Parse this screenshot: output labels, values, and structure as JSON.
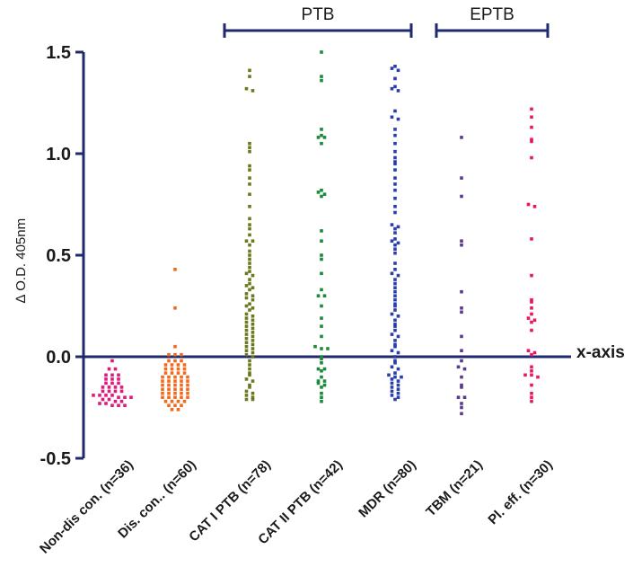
{
  "chart_data": {
    "type": "scatter",
    "title": "",
    "xlabel": "",
    "ylabel": "∆ O.D. 405nm",
    "ylim": [
      -0.5,
      1.5
    ],
    "yticks": [
      "1.5",
      "1.0",
      "0.5",
      "0.0",
      "-0.5"
    ],
    "ytick_values": [
      1.5,
      1.0,
      0.5,
      0.0,
      -0.5
    ],
    "zero_line_label": "x-axis",
    "groups": [
      {
        "label": "PTB",
        "from": 2,
        "to": 4
      },
      {
        "label": "EPTB",
        "from": 5,
        "to": 6
      }
    ],
    "categories": [
      {
        "label": "Non-dis con. (n=36)",
        "color": "#e0197d",
        "n": 36,
        "values": [
          -0.02,
          -0.06,
          -0.06,
          -0.09,
          -0.09,
          -0.09,
          -0.11,
          -0.11,
          -0.11,
          -0.13,
          -0.13,
          -0.13,
          -0.15,
          -0.15,
          -0.15,
          -0.15,
          -0.17,
          -0.17,
          -0.17,
          -0.17,
          -0.19,
          -0.19,
          -0.19,
          -0.19,
          -0.2,
          -0.2,
          -0.2,
          -0.21,
          -0.21,
          -0.22,
          -0.22,
          -0.23,
          -0.23,
          -0.24,
          -0.24,
          -0.24
        ]
      },
      {
        "label": "Dis. con.. (n=60)",
        "color": "#f26b1d",
        "n": 60,
        "values": [
          0.43,
          0.24,
          0.05,
          0.01,
          0.01,
          0.01,
          -0.02,
          -0.02,
          -0.02,
          -0.04,
          -0.04,
          -0.04,
          -0.04,
          -0.06,
          -0.06,
          -0.06,
          -0.06,
          -0.08,
          -0.08,
          -0.08,
          -0.08,
          -0.1,
          -0.1,
          -0.1,
          -0.1,
          -0.1,
          -0.12,
          -0.12,
          -0.12,
          -0.12,
          -0.12,
          -0.14,
          -0.14,
          -0.14,
          -0.14,
          -0.14,
          -0.16,
          -0.16,
          -0.16,
          -0.16,
          -0.16,
          -0.18,
          -0.18,
          -0.18,
          -0.18,
          -0.18,
          -0.2,
          -0.2,
          -0.2,
          -0.2,
          -0.2,
          -0.22,
          -0.22,
          -0.22,
          -0.22,
          -0.24,
          -0.24,
          -0.24,
          -0.26,
          -0.26
        ]
      },
      {
        "label": "CAT I PTB (n=78)",
        "color": "#6b7a1f",
        "n": 78,
        "values": [
          1.41,
          1.38,
          1.32,
          1.31,
          1.05,
          1.03,
          1.01,
          0.94,
          0.92,
          0.88,
          0.85,
          0.8,
          0.74,
          0.68,
          0.65,
          0.63,
          0.6,
          0.57,
          0.57,
          0.55,
          0.52,
          0.5,
          0.48,
          0.46,
          0.44,
          0.42,
          0.41,
          0.4,
          0.38,
          0.36,
          0.35,
          0.34,
          0.33,
          0.31,
          0.3,
          0.29,
          0.28,
          0.26,
          0.25,
          0.24,
          0.23,
          0.21,
          0.2,
          0.19,
          0.18,
          0.17,
          0.16,
          0.15,
          0.14,
          0.13,
          0.12,
          0.11,
          0.1,
          0.09,
          0.08,
          0.07,
          0.06,
          0.05,
          0.04,
          0.03,
          0.02,
          0.01,
          0.0,
          -0.02,
          -0.04,
          -0.06,
          -0.08,
          -0.09,
          -0.11,
          -0.12,
          -0.14,
          -0.15,
          -0.17,
          -0.18,
          -0.19,
          -0.2,
          -0.21,
          -0.21
        ]
      },
      {
        "label": "CAT II PTB (n=42)",
        "color": "#1b8a3a",
        "n": 42,
        "values": [
          1.5,
          1.38,
          1.36,
          1.12,
          1.09,
          1.08,
          1.08,
          1.05,
          0.82,
          0.81,
          0.8,
          0.79,
          0.62,
          0.57,
          0.5,
          0.48,
          0.41,
          0.33,
          0.3,
          0.3,
          0.25,
          0.19,
          0.15,
          0.1,
          0.05,
          0.04,
          0.04,
          0.0,
          -0.01,
          -0.03,
          -0.06,
          -0.06,
          -0.07,
          -0.1,
          -0.12,
          -0.12,
          -0.13,
          -0.14,
          -0.15,
          -0.18,
          -0.2,
          -0.22
        ]
      },
      {
        "label": "MDR (n=80)",
        "color": "#2a3fa8",
        "n": 80,
        "values": [
          1.43,
          1.42,
          1.41,
          1.37,
          1.33,
          1.32,
          1.31,
          1.21,
          1.18,
          1.17,
          1.12,
          1.09,
          1.05,
          1.01,
          0.98,
          0.96,
          0.95,
          0.92,
          0.88,
          0.85,
          0.82,
          0.78,
          0.74,
          0.71,
          0.65,
          0.64,
          0.63,
          0.61,
          0.58,
          0.57,
          0.56,
          0.55,
          0.53,
          0.51,
          0.46,
          0.43,
          0.41,
          0.4,
          0.38,
          0.36,
          0.34,
          0.32,
          0.3,
          0.28,
          0.26,
          0.25,
          0.23,
          0.21,
          0.2,
          0.18,
          0.16,
          0.15,
          0.13,
          0.11,
          0.1,
          0.08,
          0.06,
          0.05,
          0.03,
          0.02,
          0.0,
          -0.02,
          -0.03,
          -0.05,
          -0.06,
          -0.08,
          -0.09,
          -0.1,
          -0.1,
          -0.11,
          -0.12,
          -0.13,
          -0.14,
          -0.15,
          -0.16,
          -0.17,
          -0.18,
          -0.19,
          -0.2,
          -0.21
        ]
      },
      {
        "label": "TBM (n=21)",
        "color": "#5a3a8c",
        "n": 21,
        "values": [
          1.08,
          0.88,
          0.79,
          0.57,
          0.55,
          0.32,
          0.24,
          0.22,
          0.1,
          0.03,
          -0.05,
          -0.06,
          -0.1,
          -0.14,
          -0.15,
          -0.2,
          -0.2,
          -0.23,
          -0.25,
          -0.28,
          -0.02
        ]
      },
      {
        "label": "Pl. eff. (n=30)",
        "color": "#e8195a",
        "n": 30,
        "values": [
          1.22,
          1.18,
          1.13,
          1.07,
          1.06,
          0.98,
          0.75,
          0.74,
          0.58,
          0.4,
          0.28,
          0.27,
          0.24,
          0.21,
          0.19,
          0.18,
          0.17,
          0.13,
          0.03,
          0.02,
          0.01,
          -0.05,
          -0.07,
          -0.09,
          -0.09,
          -0.1,
          -0.14,
          -0.18,
          -0.2,
          -0.22
        ]
      }
    ]
  }
}
